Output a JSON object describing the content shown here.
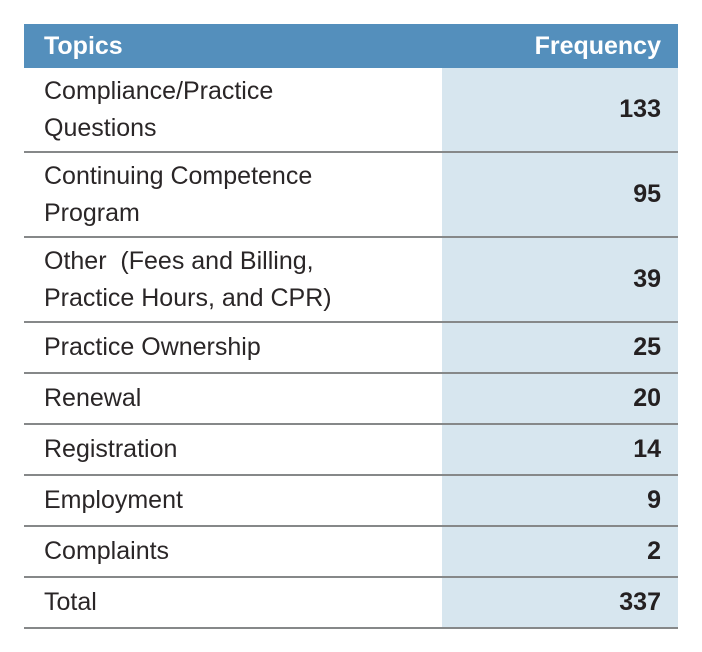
{
  "table": {
    "columns": [
      {
        "label": "Topics"
      },
      {
        "label": "Frequency"
      }
    ],
    "rows": [
      {
        "topic": "Compliance/Practice\nQuestions",
        "frequency": "133",
        "two_line": true
      },
      {
        "topic": "Continuing Competence\nProgram",
        "frequency": "95",
        "two_line": true
      },
      {
        "topic": "Other  (Fees and Billing,\nPractice Hours, and CPR)",
        "frequency": "39",
        "two_line": true
      },
      {
        "topic": "Practice Ownership",
        "frequency": "25",
        "two_line": false
      },
      {
        "topic": "Renewal",
        "frequency": "20",
        "two_line": false
      },
      {
        "topic": "Registration",
        "frequency": "14",
        "two_line": false
      },
      {
        "topic": "Employment",
        "frequency": "9",
        "two_line": false
      },
      {
        "topic": "Complaints",
        "frequency": "2",
        "two_line": false
      }
    ],
    "total_row": {
      "topic": "Total",
      "frequency": "337"
    },
    "colors": {
      "header_bg": "#548FBC",
      "header_text": "#FFFFFF",
      "frequency_column_bg": "#D7E6EF",
      "divider": "#868889",
      "text": "#2A2627"
    }
  },
  "chart_data": {
    "type": "table",
    "title": "",
    "columns": [
      "Topics",
      "Frequency"
    ],
    "categories": [
      "Compliance/Practice Questions",
      "Continuing Competence Program",
      "Other (Fees and Billing, Practice Hours, and CPR)",
      "Practice Ownership",
      "Renewal",
      "Registration",
      "Employment",
      "Complaints"
    ],
    "values": [
      133,
      95,
      39,
      25,
      20,
      14,
      9,
      2
    ],
    "total": 337,
    "legend_position": "none",
    "grid": "horizontal-dividers"
  }
}
